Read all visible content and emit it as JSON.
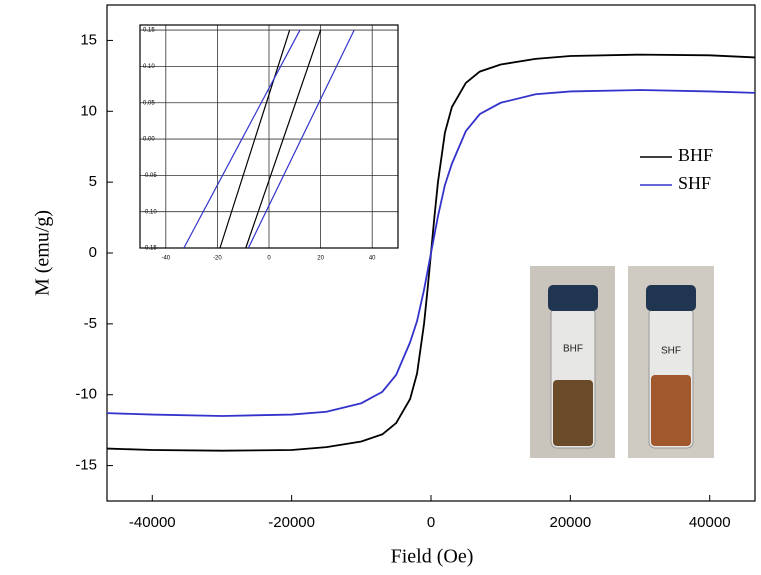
{
  "chart_data": [
    {
      "type": "line",
      "xlabel": "Field (Oe)",
      "ylabel": "M (emu/g)",
      "xlim": [
        -46500,
        46500
      ],
      "ylim": [
        -17.5,
        17.5
      ],
      "xticks": [
        -40000,
        -20000,
        0,
        20000,
        40000
      ],
      "yticks": [
        -15,
        -10,
        -5,
        0,
        5,
        10,
        15
      ],
      "legend": "right",
      "annotations": [
        "BHF",
        "SHF"
      ],
      "series": [
        {
          "name": "BHF",
          "color": "#000000",
          "x": [
            -46500,
            -40000,
            -30000,
            -20000,
            -15000,
            -10000,
            -7000,
            -5000,
            -3000,
            -2000,
            -1000,
            -500,
            0,
            500,
            1000,
            2000,
            3000,
            5000,
            7000,
            10000,
            15000,
            20000,
            30000,
            40000,
            46500
          ],
          "values": [
            -13.8,
            -13.9,
            -13.95,
            -13.9,
            -13.7,
            -13.3,
            -12.8,
            -12.0,
            -10.3,
            -8.5,
            -5.0,
            -2.6,
            0,
            2.6,
            5.0,
            8.5,
            10.3,
            12.0,
            12.8,
            13.3,
            13.7,
            13.9,
            14.0,
            13.95,
            13.8
          ]
        },
        {
          "name": "SHF",
          "color": "#3333cc",
          "x": [
            -46500,
            -40000,
            -30000,
            -20000,
            -15000,
            -10000,
            -7000,
            -5000,
            -3000,
            -2000,
            -1000,
            -500,
            0,
            500,
            1000,
            2000,
            3000,
            5000,
            7000,
            10000,
            15000,
            20000,
            30000,
            40000,
            46500
          ],
          "values": [
            -11.3,
            -11.4,
            -11.5,
            -11.4,
            -11.2,
            -10.6,
            -9.8,
            -8.6,
            -6.3,
            -4.8,
            -2.6,
            -1.3,
            0,
            1.3,
            2.6,
            4.8,
            6.3,
            8.6,
            9.8,
            10.6,
            11.2,
            11.4,
            11.5,
            11.4,
            11.3
          ]
        }
      ]
    },
    {
      "type": "line",
      "xlim": [
        -50,
        50
      ],
      "ylim": [
        -0.15,
        0.157
      ],
      "xticks": [
        -40,
        -20,
        0,
        20,
        40
      ],
      "yticks": [
        0.15,
        {
          "value": 0.1,
          "label": "0.10"
        },
        0.05,
        {
          "value": 0,
          "label": "0.00"
        },
        -0.05,
        {
          "value": -0.1,
          "label": "-0.10"
        },
        -0.15
      ],
      "grid": true,
      "series": [
        {
          "color": "#000000",
          "x": [
            -19,
            8
          ],
          "values": [
            -0.15,
            0.15
          ]
        },
        {
          "color": "#000000",
          "x": [
            -9,
            20
          ],
          "values": [
            -0.15,
            0.15
          ]
        },
        {
          "color": "#3333cc",
          "x": [
            -33,
            12
          ],
          "values": [
            -0.15,
            0.15
          ]
        },
        {
          "color": "#3333cc",
          "x": [
            -8,
            33
          ],
          "values": [
            -0.15,
            0.15
          ]
        }
      ]
    }
  ]
}
